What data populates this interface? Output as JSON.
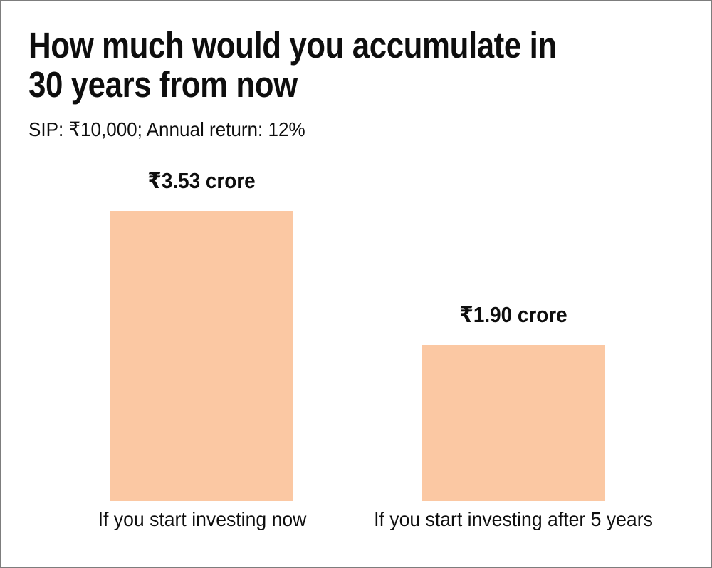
{
  "chart_data": {
    "type": "bar",
    "title": "How much would you accumulate in 30 years from now",
    "subtitle": "SIP: ₹10,000; Annual return: 12%",
    "categories": [
      "If you start investing now",
      "If you start investing after 5 years"
    ],
    "values": [
      3.53,
      1.9
    ],
    "value_labels": [
      "₹3.53 crore",
      "₹1.90 crore"
    ],
    "unit": "crore",
    "currency_symbol": "₹",
    "ylim": [
      0,
      3.53
    ],
    "bar_color": "#fbc8a3",
    "text_color": "#0e0e0e",
    "grid": "off",
    "legend": "none",
    "axes_shown": false
  }
}
